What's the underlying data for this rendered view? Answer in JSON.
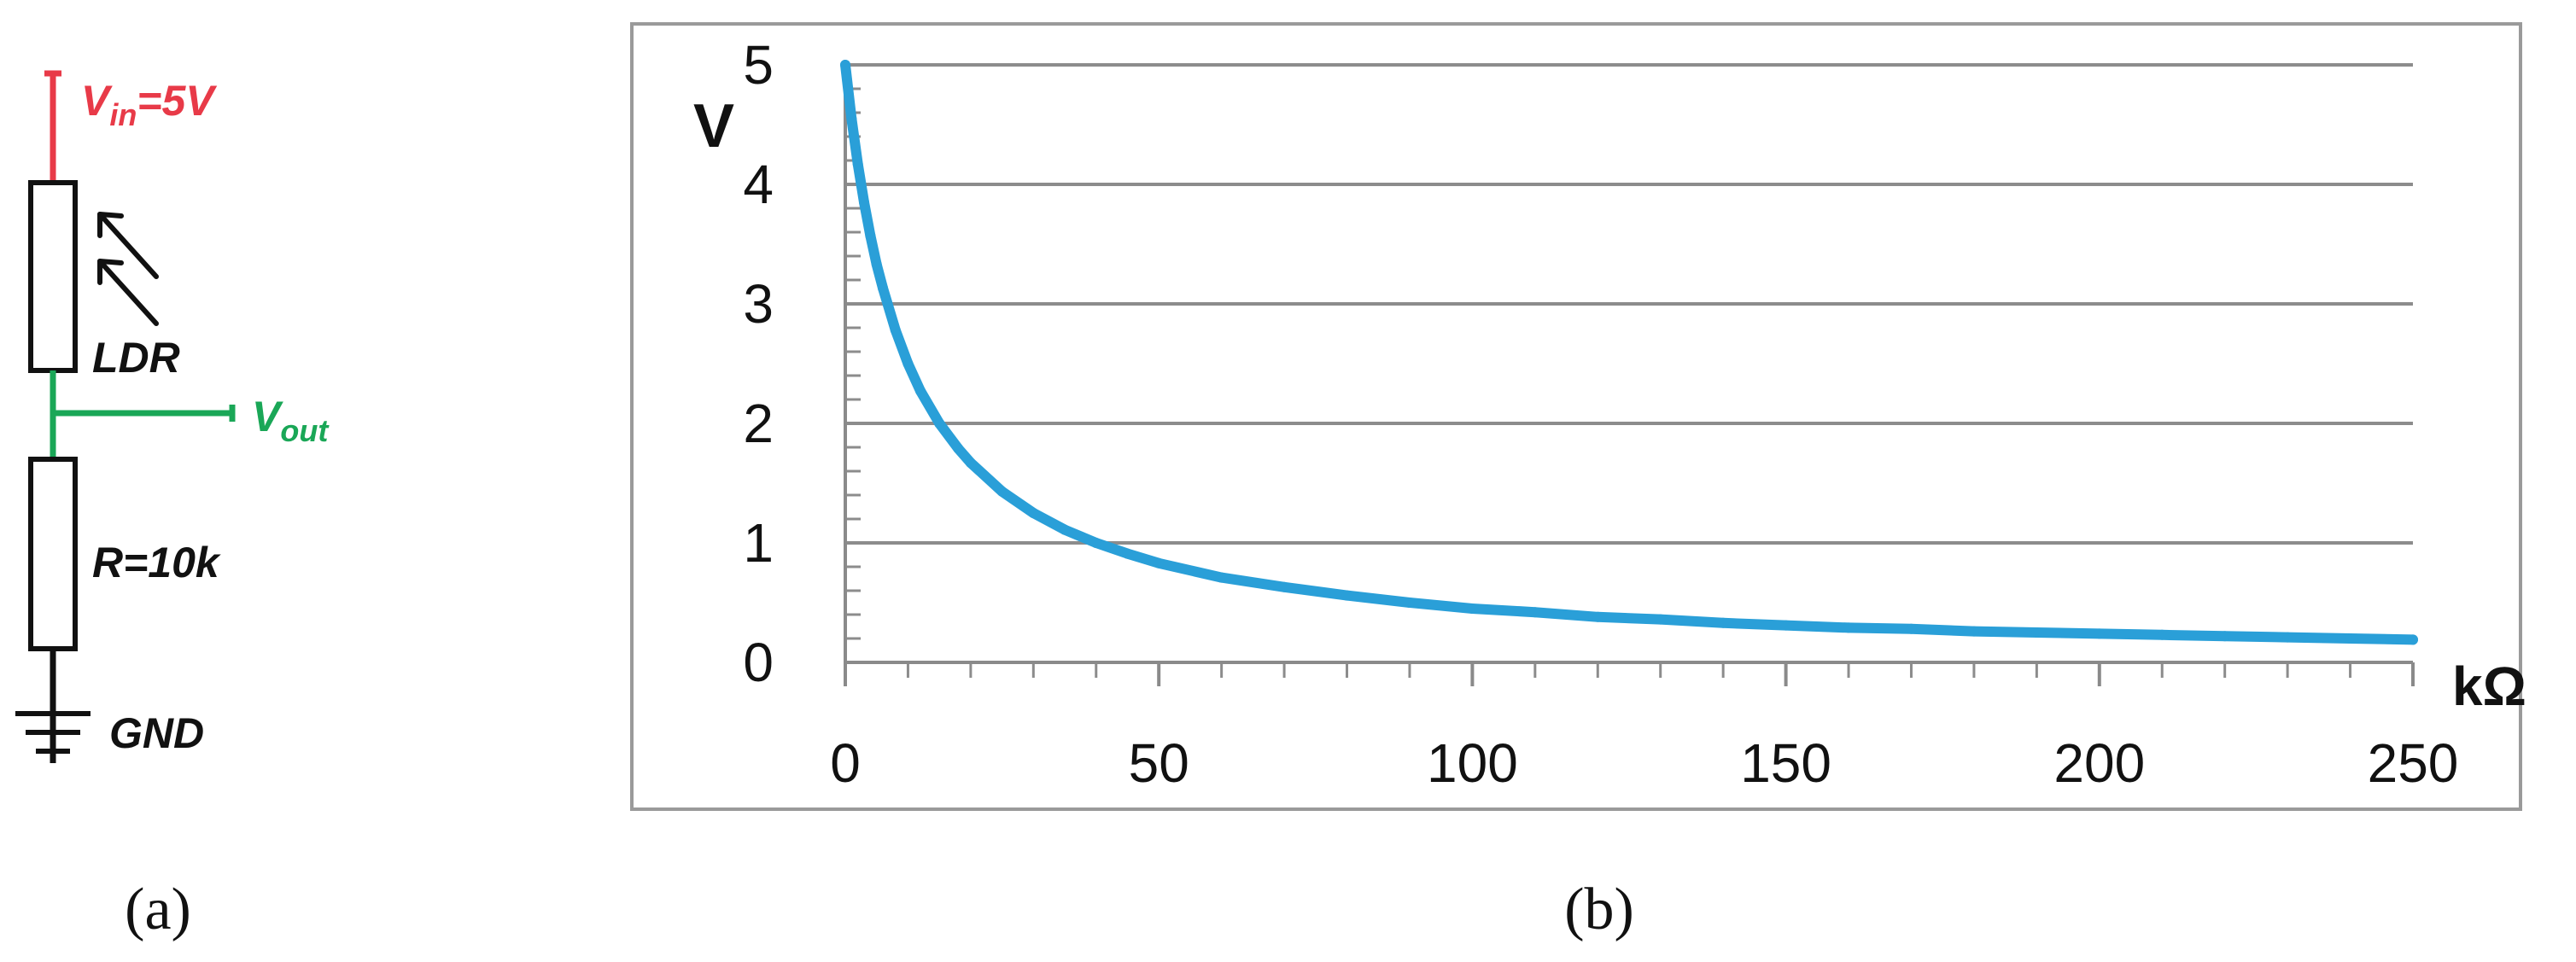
{
  "circuit": {
    "vin_main": "V",
    "vin_sub": "in",
    "vin_rest": "=5V",
    "ldr_label": "LDR",
    "vout_main": "V",
    "vout_sub": "out",
    "resistor_label": "R=10k",
    "gnd_label": "GND",
    "colors": {
      "vin": "#e83a48",
      "vout": "#1aa757",
      "wire": "#111111"
    }
  },
  "captions": {
    "a": "(a)",
    "b": "(b)"
  },
  "chart_data": {
    "type": "line",
    "title": "",
    "xlabel": "kΩ",
    "ylabel": "V",
    "xlim": [
      0,
      250
    ],
    "ylim": [
      0,
      5
    ],
    "x_ticks": [
      0,
      50,
      100,
      150,
      200,
      250
    ],
    "y_ticks": [
      0,
      1,
      2,
      3,
      4,
      5
    ],
    "grid": "horizontal",
    "legend": "none",
    "line_color": "#2a9fd8",
    "series": [
      {
        "x": [
          0,
          1,
          2,
          3,
          4,
          5,
          6,
          8,
          10,
          12,
          15,
          18,
          20,
          25,
          30,
          35,
          40,
          45,
          50,
          60,
          70,
          80,
          90,
          100,
          110,
          120,
          130,
          140,
          150,
          160,
          170,
          180,
          190,
          200,
          210,
          220,
          230,
          240,
          250
        ],
        "y": [
          5.0,
          4.55,
          4.17,
          3.85,
          3.57,
          3.33,
          3.13,
          2.78,
          2.5,
          2.27,
          2.0,
          1.79,
          1.67,
          1.43,
          1.25,
          1.11,
          1.0,
          0.91,
          0.83,
          0.71,
          0.63,
          0.56,
          0.5,
          0.45,
          0.42,
          0.38,
          0.36,
          0.33,
          0.31,
          0.29,
          0.28,
          0.26,
          0.25,
          0.24,
          0.23,
          0.22,
          0.21,
          0.2,
          0.19
        ]
      }
    ]
  }
}
